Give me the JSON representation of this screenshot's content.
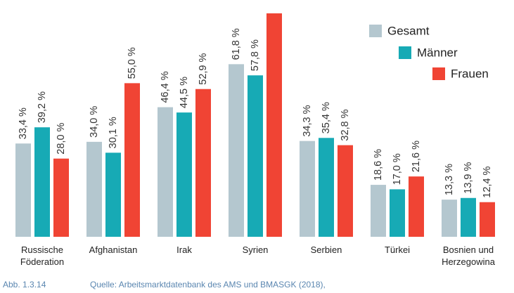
{
  "chart_data": {
    "type": "bar",
    "categories": [
      "Russische Föderation",
      "Afghanistan",
      "Irak",
      "Syrien",
      "Serbien",
      "Türkei",
      "Bosnien und Herzegowina"
    ],
    "series": [
      {
        "name": "Gesamt",
        "color": "#b4c7cf",
        "values": [
          33.4,
          34.0,
          46.4,
          61.8,
          34.3,
          18.6,
          13.3
        ],
        "value_labels": [
          "33,4 %",
          "34,0 %",
          "46,4 %",
          "61,8 %",
          "34,3 %",
          "18,6 %",
          "13,3 %"
        ]
      },
      {
        "name": "Männer",
        "color": "#17aab5",
        "values": [
          39.2,
          30.1,
          44.5,
          57.8,
          35.4,
          17.0,
          13.9
        ],
        "value_labels": [
          "39,2 %",
          "30,1 %",
          "44,5 %",
          "57,8 %",
          "35,4 %",
          "17,0 %",
          "13,9 %"
        ]
      },
      {
        "name": "Frauen",
        "color": "#f04434",
        "values": [
          28.0,
          55.0,
          52.9,
          80,
          32.8,
          21.6,
          12.4
        ],
        "value_labels": [
          "28,0 %",
          "55,0 %",
          "52,9 %",
          null,
          "32,8 %",
          "21,6 %",
          "12,4 %"
        ]
      }
    ],
    "ylim": [
      0,
      80
    ],
    "figure_label": "Abb. 1.3.14",
    "source": "Quelle: Arbeitsmarktdatenbank des AMS und BMASGK (2018),"
  }
}
